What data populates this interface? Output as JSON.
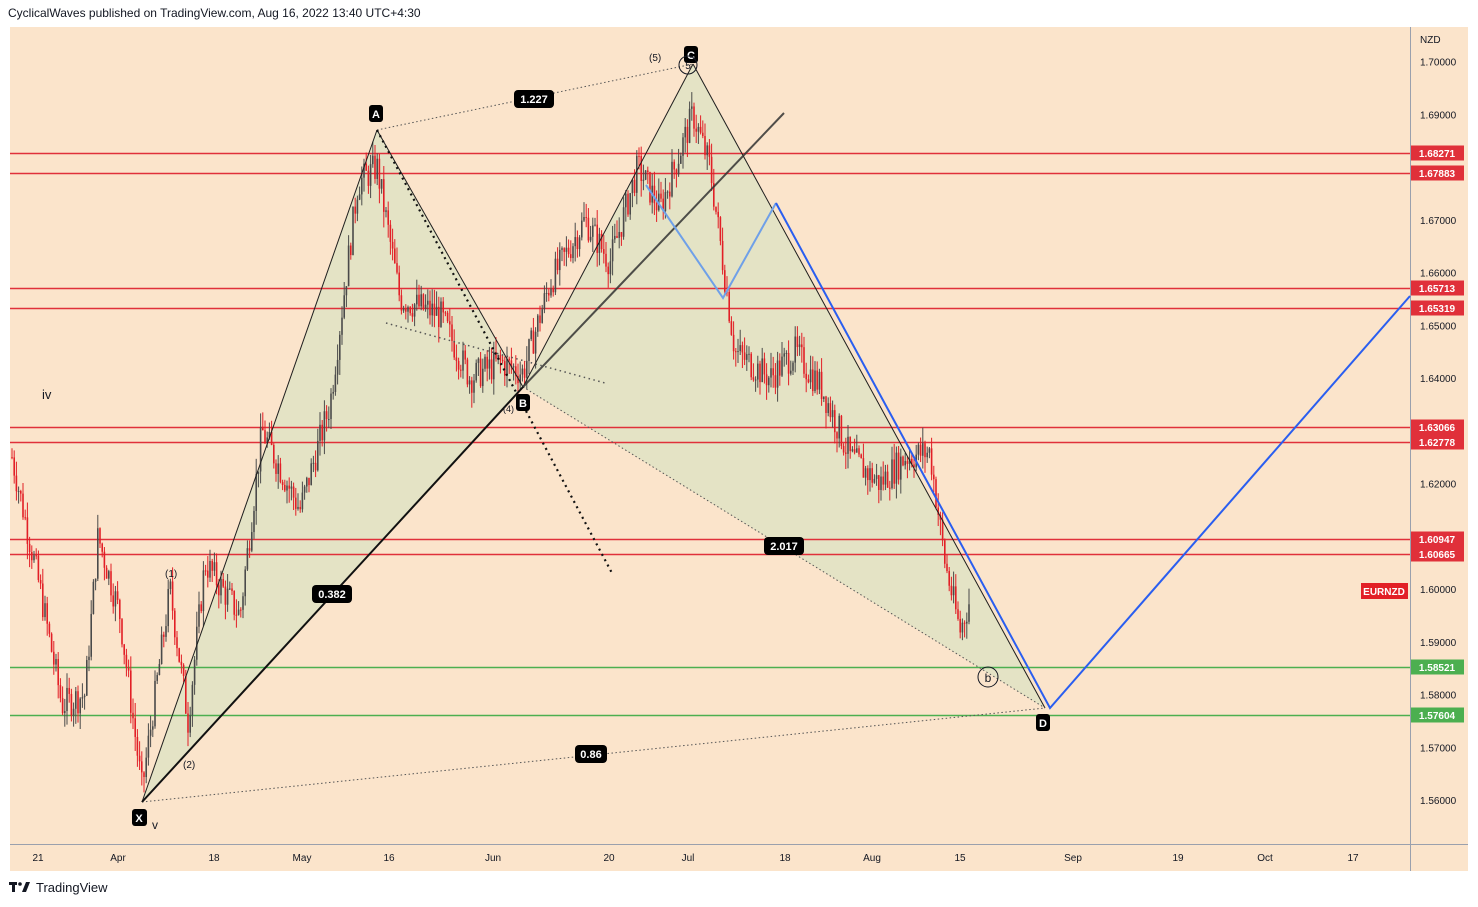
{
  "header": {
    "publisher": "CyclicalWaves published on TradingView.com, Aug 16, 2022 13:40 UTC+4:30"
  },
  "footer": {
    "brand": "TradingView"
  },
  "chart_data": {
    "type": "candlestick",
    "symbol": "EURNZD",
    "currency": "NZD",
    "colors": {
      "background": "#fbe4cb",
      "up": "#4a4a4a",
      "down": "#e21f26",
      "resistance": "#e0303a",
      "support": "#4caf50",
      "projection": "#2962ff",
      "pattern_fill": "#dfe3c4"
    },
    "y_axis": {
      "ticks": [
        "1.70000",
        "1.69000",
        "1.67000",
        "1.66000",
        "1.65000",
        "1.64000",
        "1.62000",
        "1.60000",
        "1.59000",
        "1.58000",
        "1.57000",
        "1.56000"
      ],
      "range": [
        1.553,
        1.707
      ]
    },
    "x_axis": {
      "ticks": [
        "21",
        "Apr",
        "18",
        "May",
        "16",
        "Jun",
        "20",
        "Jul",
        "18",
        "Aug",
        "15",
        "Sep",
        "19",
        "Oct",
        "17"
      ]
    },
    "horizontal_levels": [
      {
        "price": "1.68271",
        "kind": "resistance"
      },
      {
        "price": "1.67883",
        "kind": "resistance"
      },
      {
        "price": "1.65713",
        "kind": "resistance"
      },
      {
        "price": "1.65319",
        "kind": "resistance"
      },
      {
        "price": "1.63066",
        "kind": "resistance"
      },
      {
        "price": "1.62778",
        "kind": "resistance"
      },
      {
        "price": "1.60947",
        "kind": "resistance"
      },
      {
        "price": "1.60665",
        "kind": "resistance"
      },
      {
        "price": "1.58521",
        "kind": "support"
      },
      {
        "price": "1.57604",
        "kind": "support"
      }
    ],
    "last_price_label": "EURNZD",
    "harmonic_points": [
      {
        "label": "X",
        "date": "2022-04-04",
        "price": 1.5595
      },
      {
        "label": "A",
        "date": "2022-05-13",
        "price": 1.685
      },
      {
        "label": "B",
        "date": "2022-06-03",
        "price": 1.637
      },
      {
        "label": "C",
        "date": "2022-07-01",
        "price": 1.6965
      },
      {
        "label": "D",
        "date": "2022-08-29",
        "price": 1.5765
      }
    ],
    "ratios": [
      "1.227",
      "0.382",
      "2.017",
      "0.86"
    ],
    "wave_labels": [
      "iv",
      "v",
      "(1)",
      "(2)",
      "(4)",
      "(5)",
      "5",
      "b"
    ]
  }
}
